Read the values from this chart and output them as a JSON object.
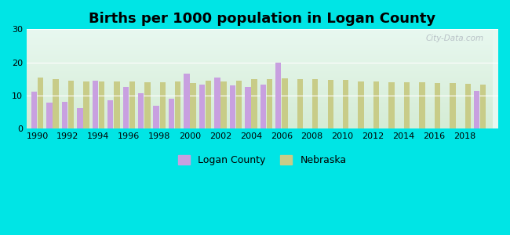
{
  "title": "Births per 1000 population in Logan County",
  "years": [
    1990,
    1991,
    1992,
    1993,
    1994,
    1995,
    1996,
    1997,
    1998,
    1999,
    2000,
    2001,
    2002,
    2003,
    2004,
    2005,
    2006,
    2007,
    2008,
    2009,
    2010,
    2011,
    2012,
    2013,
    2014,
    2015,
    2016,
    2017,
    2018,
    2019
  ],
  "logan_county": [
    11.2,
    7.8,
    8.1,
    6.1,
    14.5,
    8.5,
    12.5,
    10.8,
    6.8,
    9.0,
    16.5,
    13.2,
    15.5,
    13.0,
    12.5,
    13.2,
    20.0,
    null,
    null,
    null,
    null,
    null,
    null,
    null,
    null,
    null,
    null,
    null,
    null,
    11.5
  ],
  "nebraska": [
    15.5,
    15.0,
    14.5,
    14.3,
    14.3,
    14.2,
    14.2,
    14.1,
    14.1,
    14.2,
    13.8,
    14.5,
    14.3,
    14.5,
    15.0,
    15.0,
    15.3,
    15.0,
    15.0,
    14.8,
    14.8,
    14.3,
    14.3,
    14.0,
    14.0,
    14.0,
    13.8,
    13.8,
    13.5,
    13.2
  ],
  "logan_color": "#c8a0e0",
  "nebraska_color": "#c8cc88",
  "bg_color": "#00e5e5",
  "grad_top": "#e8f8f0",
  "grad_bottom": "#d5ecd5",
  "ylim": [
    0,
    30
  ],
  "yticks": [
    0,
    10,
    20,
    30
  ],
  "bar_width": 0.38,
  "title_fontsize": 13,
  "title_fontweight": "bold",
  "legend_fontsize": 9,
  "watermark": "City-Data.com"
}
